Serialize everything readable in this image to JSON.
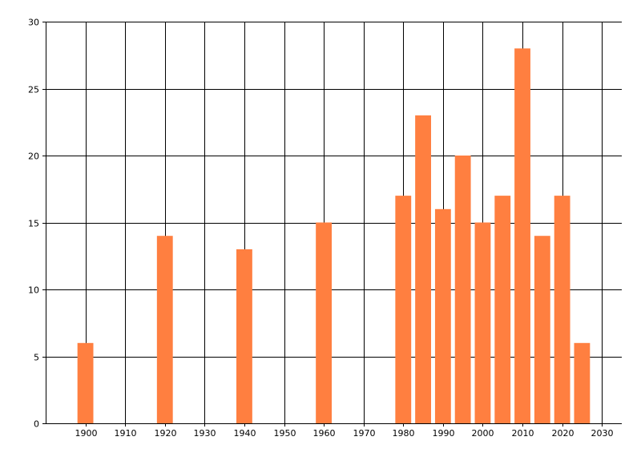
{
  "chart_data": {
    "type": "bar",
    "title": "",
    "xlabel": "",
    "ylabel": "",
    "x": [
      1900,
      1920,
      1940,
      1960,
      1980,
      1985,
      1990,
      1995,
      2000,
      2005,
      2010,
      2015,
      2020,
      2025
    ],
    "values": [
      6,
      14,
      13,
      15,
      17,
      23,
      16,
      20,
      15,
      17,
      28,
      14,
      17,
      6
    ],
    "xlim": [
      1890,
      2035
    ],
    "ylim": [
      0,
      30
    ],
    "x_ticks": [
      "1900",
      "1910",
      "1920",
      "1930",
      "1940",
      "1950",
      "1960",
      "1970",
      "1980",
      "1990",
      "2000",
      "2010",
      "2020",
      "2030"
    ],
    "y_ticks": [
      "0",
      "5",
      "10",
      "15",
      "20",
      "25",
      "30"
    ],
    "grid": true,
    "bar_color": "#ff7f40",
    "grid_color": "#000000"
  }
}
